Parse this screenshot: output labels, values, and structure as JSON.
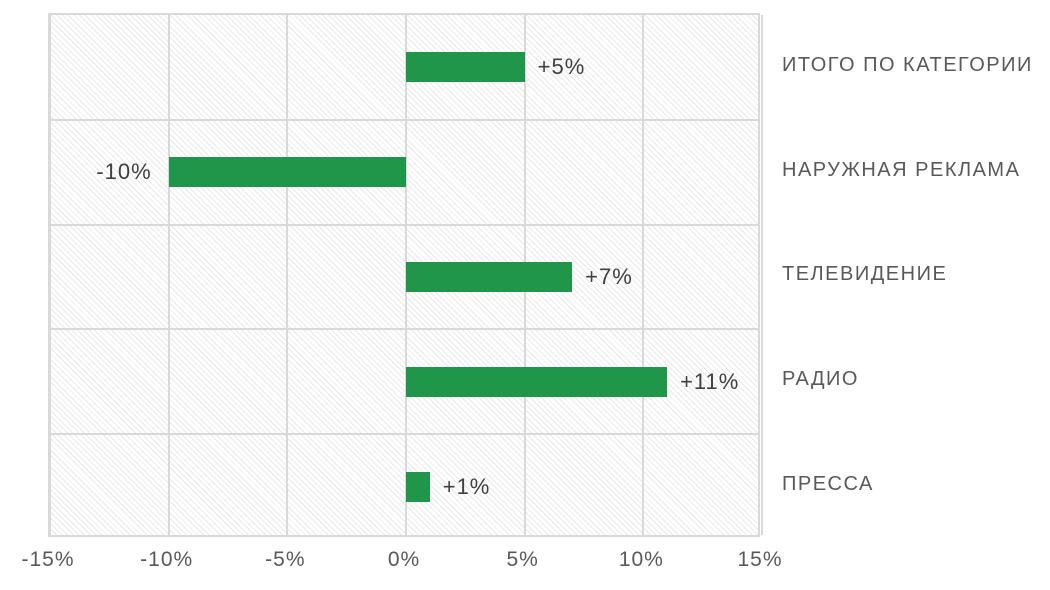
{
  "chart_data": {
    "type": "bar",
    "orientation": "horizontal",
    "title": "",
    "categories": [
      "ИТОГО ПО КАТЕГОРИИ",
      "НАРУЖНАЯ РЕКЛАМА",
      "ТЕЛЕВИДЕНИЕ",
      "РАДИО",
      "ПРЕССА"
    ],
    "values": [
      5,
      -10,
      7,
      11,
      1
    ],
    "value_labels": [
      "+5%",
      "-10%",
      "+7%",
      "+11%",
      "+1%"
    ],
    "xlim": [
      -15,
      15
    ],
    "x_ticks": [
      -15,
      -10,
      -5,
      0,
      5,
      10,
      15
    ],
    "x_tick_labels": [
      "-15%",
      "-10%",
      "-5%",
      "0%",
      "5%",
      "10%",
      "15%"
    ],
    "grid": true,
    "legend_position": "none",
    "category_labels_position": "right",
    "plot_background_pattern": "light-diagonal-hatch",
    "colors": {
      "bar": "#1F9649",
      "gridline": "#D9D9D9",
      "hatch": "#E9E9E9",
      "category_text": "#595959",
      "tick_text": "#595959",
      "value_text": "#404040",
      "background": "#FFFFFF"
    }
  }
}
